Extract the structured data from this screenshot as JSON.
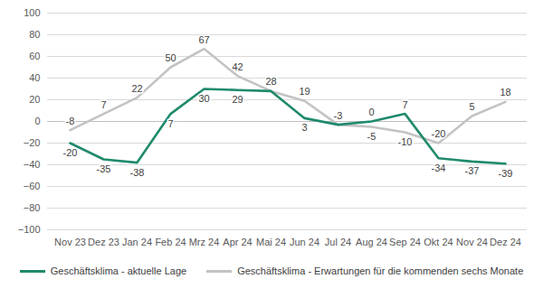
{
  "chart_data": {
    "type": "line",
    "categories": [
      "Nov 23",
      "Dez 23",
      "Jan 24",
      "Feb 24",
      "Mrz 24",
      "Apr 24",
      "Mai 24",
      "Jun 24",
      "Jul 24",
      "Aug 24",
      "Sep 24",
      "Okt 24",
      "Nov 24",
      "Dez 24"
    ],
    "series": [
      {
        "name": "Geschäftsklima - aktuelle Lage",
        "color": "#1f8a6c",
        "values": [
          -20,
          -35,
          -38,
          7,
          30,
          29,
          28,
          3,
          -3,
          0,
          7,
          -34,
          -37,
          -39
        ]
      },
      {
        "name": "Geschäftsklima - Erwartungen für die kommenden sechs Monate",
        "color": "#c3c3c3",
        "values": [
          -8,
          7,
          22,
          50,
          67,
          42,
          28,
          19,
          -3,
          -5,
          -10,
          -20,
          5,
          18
        ]
      }
    ],
    "ylim": [
      -100,
      100
    ],
    "yticks": [
      -100,
      -80,
      -60,
      -40,
      -20,
      0,
      20,
      40,
      60,
      80,
      100
    ],
    "grid": true,
    "data_labels": true,
    "legend": "bottom"
  }
}
